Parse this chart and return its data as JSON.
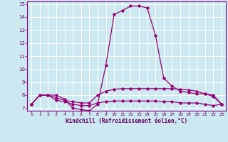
{
  "xlabel": "Windchill (Refroidissement éolien,°C)",
  "bg_color": "#cce8f0",
  "grid_color": "#ffffff",
  "line_color": "#990077",
  "xlim": [
    -0.5,
    23.5
  ],
  "ylim": [
    6.8,
    15.2
  ],
  "yticks": [
    7,
    8,
    9,
    10,
    11,
    12,
    13,
    14,
    15
  ],
  "xticks": [
    0,
    1,
    2,
    3,
    4,
    5,
    6,
    7,
    8,
    9,
    10,
    11,
    12,
    13,
    14,
    15,
    16,
    17,
    18,
    19,
    20,
    21,
    22,
    23
  ],
  "curves": [
    {
      "x": [
        0,
        1,
        2,
        3,
        4,
        5,
        6,
        7,
        8,
        9,
        10,
        11,
        12,
        13,
        14,
        15,
        16,
        17,
        18,
        19,
        20,
        21,
        22,
        23
      ],
      "y": [
        7.3,
        8.0,
        8.0,
        8.0,
        7.7,
        7.0,
        6.9,
        6.8,
        7.3,
        10.3,
        14.2,
        14.5,
        14.85,
        14.85,
        14.7,
        12.6,
        9.3,
        8.7,
        8.3,
        8.2,
        8.1,
        8.1,
        8.0,
        7.3
      ]
    },
    {
      "x": [
        0,
        1,
        2,
        3,
        4,
        5,
        6,
        7,
        8,
        9,
        10,
        11,
        12,
        13,
        14,
        15,
        16,
        17,
        18,
        19,
        20,
        21,
        22,
        23
      ],
      "y": [
        7.3,
        8.0,
        8.0,
        7.8,
        7.6,
        7.5,
        7.4,
        7.4,
        8.0,
        8.3,
        8.45,
        8.5,
        8.5,
        8.5,
        8.5,
        8.5,
        8.5,
        8.5,
        8.45,
        8.4,
        8.3,
        8.1,
        7.9,
        7.3
      ]
    },
    {
      "x": [
        0,
        1,
        2,
        3,
        4,
        5,
        6,
        7,
        8,
        9,
        10,
        11,
        12,
        13,
        14,
        15,
        16,
        17,
        18,
        19,
        20,
        21,
        22,
        23
      ],
      "y": [
        7.3,
        8.0,
        8.0,
        7.6,
        7.5,
        7.3,
        7.2,
        7.2,
        7.4,
        7.5,
        7.55,
        7.55,
        7.55,
        7.55,
        7.55,
        7.55,
        7.5,
        7.5,
        7.4,
        7.4,
        7.4,
        7.3,
        7.2,
        7.3
      ]
    }
  ]
}
